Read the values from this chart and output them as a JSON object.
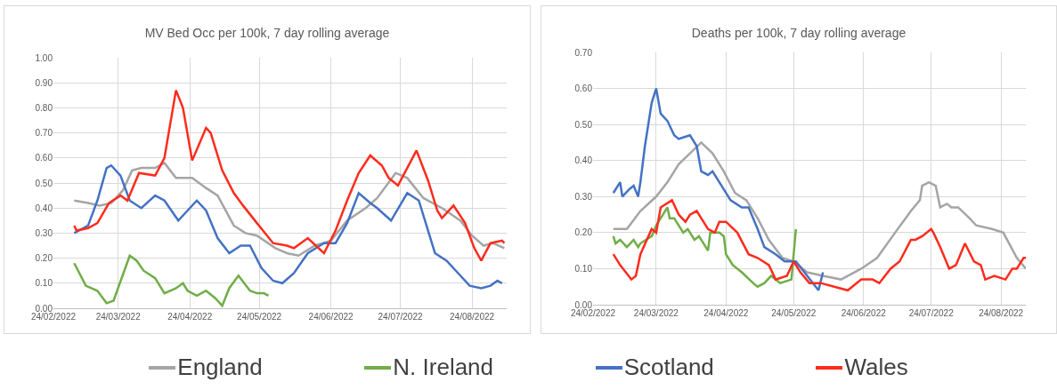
{
  "chart_data": [
    {
      "type": "line",
      "title": "MV Bed Occ per 100k, 7 day rolling average",
      "grid": true,
      "legend": "bottom",
      "xlim": [
        "2022-02-24",
        "2022-09-08"
      ],
      "xticks": [
        {
          "value": "2022-02-24",
          "label": "24/02/2022"
        },
        {
          "value": "2022-03-24",
          "label": "24/03/2022"
        },
        {
          "value": "2022-04-24",
          "label": "24/04/2022"
        },
        {
          "value": "2022-05-24",
          "label": "24/05/2022"
        },
        {
          "value": "2022-06-24",
          "label": "24/06/2022"
        },
        {
          "value": "2022-07-24",
          "label": "24/07/2022"
        },
        {
          "value": "2022-08-24",
          "label": "24/08/2022"
        }
      ],
      "ylim": [
        0,
        1
      ],
      "yticks": [
        {
          "value": 0,
          "label": "0.00"
        },
        {
          "value": 0.1,
          "label": "0.10"
        },
        {
          "value": 0.2,
          "label": "0.20"
        },
        {
          "value": 0.3,
          "label": "0.30"
        },
        {
          "value": 0.4,
          "label": "0.40"
        },
        {
          "value": 0.5,
          "label": "0.50"
        },
        {
          "value": 0.6,
          "label": "0.60"
        },
        {
          "value": 0.7,
          "label": "0.70"
        },
        {
          "value": 0.8,
          "label": "0.80"
        },
        {
          "value": 0.9,
          "label": "0.90"
        },
        {
          "value": 1,
          "label": "1.00"
        }
      ],
      "series": [
        {
          "name": "England",
          "color": "#a5a5a5",
          "x": [
            "2022-03-05",
            "2022-03-11",
            "2022-03-16",
            "2022-03-21",
            "2022-03-26",
            "2022-03-30",
            "2022-04-03",
            "2022-04-09",
            "2022-04-13",
            "2022-04-18",
            "2022-04-25",
            "2022-05-01",
            "2022-05-06",
            "2022-05-13",
            "2022-05-18",
            "2022-05-23",
            "2022-05-31",
            "2022-06-05",
            "2022-06-10",
            "2022-06-17",
            "2022-06-24",
            "2022-07-01",
            "2022-07-09",
            "2022-07-14",
            "2022-07-22",
            "2022-07-27",
            "2022-08-03",
            "2022-08-11",
            "2022-08-19",
            "2022-08-24",
            "2022-08-29",
            "2022-09-02",
            "2022-09-07"
          ],
          "values": [
            0.43,
            0.42,
            0.41,
            0.42,
            0.47,
            0.55,
            0.56,
            0.56,
            0.58,
            0.52,
            0.52,
            0.48,
            0.45,
            0.33,
            0.3,
            0.29,
            0.24,
            0.22,
            0.21,
            0.25,
            0.27,
            0.35,
            0.4,
            0.44,
            0.54,
            0.52,
            0.44,
            0.4,
            0.35,
            0.29,
            0.25,
            0.26,
            0.24
          ]
        },
        {
          "name": "N. Ireland",
          "color": "#70ad47",
          "x": [
            "2022-03-05",
            "2022-03-10",
            "2022-03-15",
            "2022-03-19",
            "2022-03-22",
            "2022-03-29",
            "2022-04-01",
            "2022-04-04",
            "2022-04-09",
            "2022-04-13",
            "2022-04-18",
            "2022-04-21",
            "2022-04-23",
            "2022-04-27",
            "2022-05-01",
            "2022-05-05",
            "2022-05-08",
            "2022-05-11",
            "2022-05-15",
            "2022-05-20",
            "2022-05-23",
            "2022-05-26",
            "2022-05-28"
          ],
          "values": [
            0.18,
            0.09,
            0.07,
            0.02,
            0.03,
            0.21,
            0.19,
            0.15,
            0.12,
            0.06,
            0.08,
            0.1,
            0.07,
            0.05,
            0.07,
            0.04,
            0.01,
            0.08,
            0.13,
            0.07,
            0.06,
            0.06,
            0.05
          ]
        },
        {
          "name": "Scotland",
          "color": "#4472c4",
          "x": [
            "2022-03-05",
            "2022-03-11",
            "2022-03-15",
            "2022-03-19",
            "2022-03-21",
            "2022-03-25",
            "2022-03-29",
            "2022-04-03",
            "2022-04-09",
            "2022-04-13",
            "2022-04-19",
            "2022-04-23",
            "2022-04-27",
            "2022-05-01",
            "2022-05-06",
            "2022-05-11",
            "2022-05-16",
            "2022-05-20",
            "2022-05-25",
            "2022-05-30",
            "2022-06-03",
            "2022-06-08",
            "2022-06-14",
            "2022-06-21",
            "2022-06-26",
            "2022-07-01",
            "2022-07-06",
            "2022-07-11",
            "2022-07-14",
            "2022-07-20",
            "2022-07-27",
            "2022-08-01",
            "2022-08-08",
            "2022-08-13",
            "2022-08-23",
            "2022-08-28",
            "2022-09-01",
            "2022-09-04",
            "2022-09-06"
          ],
          "values": [
            0.3,
            0.33,
            0.43,
            0.56,
            0.57,
            0.53,
            0.43,
            0.4,
            0.45,
            0.43,
            0.35,
            0.39,
            0.43,
            0.39,
            0.28,
            0.22,
            0.25,
            0.25,
            0.16,
            0.11,
            0.1,
            0.14,
            0.22,
            0.26,
            0.26,
            0.34,
            0.46,
            0.42,
            0.4,
            0.35,
            0.46,
            0.43,
            0.22,
            0.19,
            0.09,
            0.08,
            0.09,
            0.11,
            0.1
          ]
        },
        {
          "name": "Wales",
          "color": "#ff2b1c",
          "x": [
            "2022-03-05",
            "2022-03-06",
            "2022-03-11",
            "2022-03-15",
            "2022-03-20",
            "2022-03-25",
            "2022-03-28",
            "2022-04-02",
            "2022-04-09",
            "2022-04-13",
            "2022-04-18",
            "2022-04-21",
            "2022-04-25",
            "2022-05-01",
            "2022-05-03",
            "2022-05-08",
            "2022-05-13",
            "2022-05-17",
            "2022-05-23",
            "2022-05-30",
            "2022-06-05",
            "2022-06-08",
            "2022-06-14",
            "2022-06-21",
            "2022-06-26",
            "2022-07-01",
            "2022-07-06",
            "2022-07-11",
            "2022-07-16",
            "2022-07-19",
            "2022-07-23",
            "2022-07-27",
            "2022-07-31",
            "2022-08-05",
            "2022-08-09",
            "2022-08-11",
            "2022-08-16",
            "2022-08-21",
            "2022-08-25",
            "2022-08-28",
            "2022-09-01",
            "2022-09-06",
            "2022-09-07"
          ],
          "values": [
            0.33,
            0.31,
            0.32,
            0.34,
            0.42,
            0.45,
            0.43,
            0.54,
            0.53,
            0.6,
            0.87,
            0.8,
            0.59,
            0.72,
            0.7,
            0.55,
            0.46,
            0.41,
            0.34,
            0.26,
            0.25,
            0.24,
            0.28,
            0.22,
            0.31,
            0.43,
            0.54,
            0.61,
            0.57,
            0.52,
            0.49,
            0.56,
            0.63,
            0.51,
            0.39,
            0.36,
            0.41,
            0.34,
            0.24,
            0.19,
            0.26,
            0.27,
            0.26
          ]
        }
      ]
    },
    {
      "type": "line",
      "title": "Deaths per 100k, 7 day rolling average",
      "grid": true,
      "legend": "bottom",
      "xlim": [
        "2022-02-24",
        "2022-09-04"
      ],
      "xticks": [
        {
          "value": "2022-02-24",
          "label": "24/02/2022"
        },
        {
          "value": "2022-03-24",
          "label": "24/03/2022"
        },
        {
          "value": "2022-04-24",
          "label": "24/04/2022"
        },
        {
          "value": "2022-05-24",
          "label": "24/05/2022"
        },
        {
          "value": "2022-06-24",
          "label": "24/06/2022"
        },
        {
          "value": "2022-07-24",
          "label": "24/07/2022"
        },
        {
          "value": "2022-08-24",
          "label": "24/08/2022"
        }
      ],
      "ylim": [
        0,
        0.7
      ],
      "yticks": [
        {
          "value": 0,
          "label": "0.00"
        },
        {
          "value": 0.1,
          "label": "0.10"
        },
        {
          "value": 0.2,
          "label": "0.20"
        },
        {
          "value": 0.3,
          "label": "0.30"
        },
        {
          "value": 0.4,
          "label": "0.40"
        },
        {
          "value": 0.5,
          "label": "0.50"
        },
        {
          "value": 0.6,
          "label": "0.60"
        },
        {
          "value": 0.7,
          "label": "0.70"
        }
      ],
      "series": [
        {
          "name": "England",
          "color": "#a5a5a5",
          "x": [
            "2022-03-05",
            "2022-03-11",
            "2022-03-17",
            "2022-03-24",
            "2022-03-29",
            "2022-04-03",
            "2022-04-08",
            "2022-04-13",
            "2022-04-18",
            "2022-04-23",
            "2022-04-28",
            "2022-05-03",
            "2022-05-08",
            "2022-05-13",
            "2022-05-19",
            "2022-05-24",
            "2022-05-30",
            "2022-06-06",
            "2022-06-14",
            "2022-06-23",
            "2022-06-30",
            "2022-07-08",
            "2022-07-15",
            "2022-07-19",
            "2022-07-20",
            "2022-07-23",
            "2022-07-26",
            "2022-07-28",
            "2022-07-31",
            "2022-08-02",
            "2022-08-05",
            "2022-08-10",
            "2022-08-13",
            "2022-08-20",
            "2022-08-25",
            "2022-08-31",
            "2022-09-04"
          ],
          "values": [
            0.21,
            0.21,
            0.26,
            0.3,
            0.34,
            0.39,
            0.42,
            0.45,
            0.42,
            0.37,
            0.31,
            0.29,
            0.24,
            0.18,
            0.13,
            0.12,
            0.09,
            0.08,
            0.07,
            0.1,
            0.13,
            0.2,
            0.26,
            0.29,
            0.33,
            0.34,
            0.33,
            0.27,
            0.28,
            0.27,
            0.27,
            0.24,
            0.22,
            0.21,
            0.2,
            0.13,
            0.1
          ]
        },
        {
          "name": "N. Ireland",
          "color": "#70ad47",
          "x": [
            "2022-03-05",
            "2022-03-06",
            "2022-03-08",
            "2022-03-11",
            "2022-03-14",
            "2022-03-16",
            "2022-03-17",
            "2022-03-22",
            "2022-03-24",
            "2022-03-29",
            "2022-03-30",
            "2022-04-01",
            "2022-04-05",
            "2022-04-07",
            "2022-04-10",
            "2022-04-12",
            "2022-04-16",
            "2022-04-17",
            "2022-04-21",
            "2022-04-23",
            "2022-04-24",
            "2022-04-27",
            "2022-05-01",
            "2022-05-06",
            "2022-05-08",
            "2022-05-11",
            "2022-05-14",
            "2022-05-18",
            "2022-05-23",
            "2022-05-25"
          ],
          "values": [
            0.19,
            0.17,
            0.18,
            0.16,
            0.18,
            0.16,
            0.17,
            0.19,
            0.22,
            0.27,
            0.24,
            0.24,
            0.2,
            0.21,
            0.18,
            0.19,
            0.15,
            0.2,
            0.2,
            0.19,
            0.14,
            0.11,
            0.09,
            0.06,
            0.05,
            0.06,
            0.08,
            0.06,
            0.07,
            0.21
          ]
        },
        {
          "name": "Scotland",
          "color": "#4472c4",
          "x": [
            "2022-03-05",
            "2022-03-08",
            "2022-03-09",
            "2022-03-12",
            "2022-03-14",
            "2022-03-16",
            "2022-03-17",
            "2022-03-19",
            "2022-03-22",
            "2022-03-24",
            "2022-03-26",
            "2022-03-29",
            "2022-04-01",
            "2022-04-03",
            "2022-04-08",
            "2022-04-11",
            "2022-04-13",
            "2022-04-16",
            "2022-04-18",
            "2022-04-23",
            "2022-04-26",
            "2022-05-01",
            "2022-05-04",
            "2022-05-08",
            "2022-05-11",
            "2022-05-16",
            "2022-05-20",
            "2022-05-25",
            "2022-05-30",
            "2022-06-04",
            "2022-06-06"
          ],
          "values": [
            0.31,
            0.34,
            0.3,
            0.32,
            0.33,
            0.3,
            0.34,
            0.44,
            0.56,
            0.6,
            0.53,
            0.51,
            0.47,
            0.46,
            0.47,
            0.44,
            0.37,
            0.36,
            0.37,
            0.32,
            0.29,
            0.27,
            0.27,
            0.21,
            0.16,
            0.14,
            0.12,
            0.12,
            0.08,
            0.04,
            0.09
          ]
        },
        {
          "name": "Wales",
          "color": "#ff2b1c",
          "x": [
            "2022-03-05",
            "2022-03-08",
            "2022-03-13",
            "2022-03-15",
            "2022-03-17",
            "2022-03-22",
            "2022-03-24",
            "2022-03-26",
            "2022-03-31",
            "2022-04-03",
            "2022-04-06",
            "2022-04-08",
            "2022-04-11",
            "2022-04-13",
            "2022-04-16",
            "2022-04-19",
            "2022-04-21",
            "2022-04-24",
            "2022-04-29",
            "2022-05-04",
            "2022-05-08",
            "2022-05-13",
            "2022-05-16",
            "2022-05-21",
            "2022-05-24",
            "2022-05-27",
            "2022-05-31",
            "2022-06-05",
            "2022-06-11",
            "2022-06-17",
            "2022-06-23",
            "2022-06-28",
            "2022-07-01",
            "2022-07-06",
            "2022-07-10",
            "2022-07-15",
            "2022-07-17",
            "2022-07-20",
            "2022-07-24",
            "2022-07-25",
            "2022-07-28",
            "2022-08-01",
            "2022-08-04",
            "2022-08-08",
            "2022-08-12",
            "2022-08-15",
            "2022-08-17",
            "2022-08-21",
            "2022-08-26",
            "2022-08-29",
            "2022-08-31",
            "2022-09-03",
            "2022-09-04"
          ],
          "values": [
            0.14,
            0.11,
            0.07,
            0.08,
            0.14,
            0.21,
            0.2,
            0.27,
            0.29,
            0.25,
            0.23,
            0.25,
            0.26,
            0.24,
            0.21,
            0.2,
            0.23,
            0.23,
            0.2,
            0.14,
            0.13,
            0.11,
            0.07,
            0.08,
            0.12,
            0.09,
            0.06,
            0.06,
            0.05,
            0.04,
            0.07,
            0.07,
            0.06,
            0.1,
            0.12,
            0.18,
            0.18,
            0.19,
            0.21,
            0.2,
            0.16,
            0.1,
            0.11,
            0.17,
            0.12,
            0.11,
            0.07,
            0.08,
            0.07,
            0.1,
            0.1,
            0.13,
            0.13
          ]
        }
      ]
    }
  ]
}
